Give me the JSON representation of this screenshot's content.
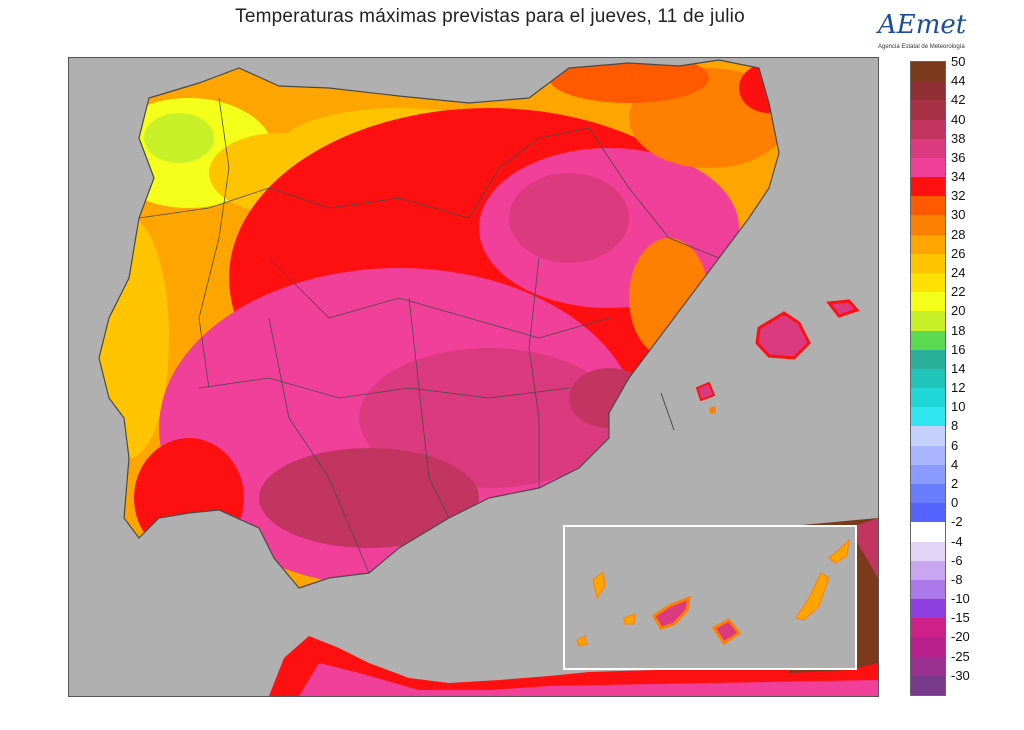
{
  "header": {
    "title": "Temperaturas máximas previstas para el jueves, 11 de julio"
  },
  "logo": {
    "wordmark": "AEmet",
    "subtitle": "Agencia Estatal de Meteorología"
  },
  "colors": {
    "sea": "#b0b0b0",
    "borders": "#4a4a4a"
  },
  "legend": {
    "items": [
      {
        "label": "50",
        "color": "#7b3a1c"
      },
      {
        "label": "44",
        "color": "#8f2f33"
      },
      {
        "label": "42",
        "color": "#a83045"
      },
      {
        "label": "40",
        "color": "#c23560"
      },
      {
        "label": "38",
        "color": "#db3a7e"
      },
      {
        "label": "36",
        "color": "#f0409a"
      },
      {
        "label": "34",
        "color": "#ff1010"
      },
      {
        "label": "32",
        "color": "#ff5a00"
      },
      {
        "label": "30",
        "color": "#ff7f00"
      },
      {
        "label": "28",
        "color": "#ffa500"
      },
      {
        "label": "26",
        "color": "#ffc400"
      },
      {
        "label": "24",
        "color": "#ffe000"
      },
      {
        "label": "22",
        "color": "#f4ff1a"
      },
      {
        "label": "20",
        "color": "#c8f028"
      },
      {
        "label": "18",
        "color": "#5ada50"
      },
      {
        "label": "16",
        "color": "#2ab09a"
      },
      {
        "label": "14",
        "color": "#20c4b8"
      },
      {
        "label": "12",
        "color": "#20d6d6"
      },
      {
        "label": "10",
        "color": "#30e6f0"
      },
      {
        "label": "8",
        "color": "#c6d0ff"
      },
      {
        "label": "6",
        "color": "#a9b6ff"
      },
      {
        "label": "4",
        "color": "#8b9bff"
      },
      {
        "label": "2",
        "color": "#6a7cff"
      },
      {
        "label": "0",
        "color": "#5564ff"
      },
      {
        "label": "-2",
        "color": "#ffffff"
      },
      {
        "label": "-4",
        "color": "#e2d4f6"
      },
      {
        "label": "-6",
        "color": "#c9a6f0"
      },
      {
        "label": "-8",
        "color": "#ad78ea"
      },
      {
        "label": "-10",
        "color": "#9040e0"
      },
      {
        "label": "-15",
        "color": "#d0208a"
      },
      {
        "label": "-20",
        "color": "#b8208c"
      },
      {
        "label": "-25",
        "color": "#9a3090"
      },
      {
        "label": "-30",
        "color": "#7a3a8c"
      }
    ]
  }
}
